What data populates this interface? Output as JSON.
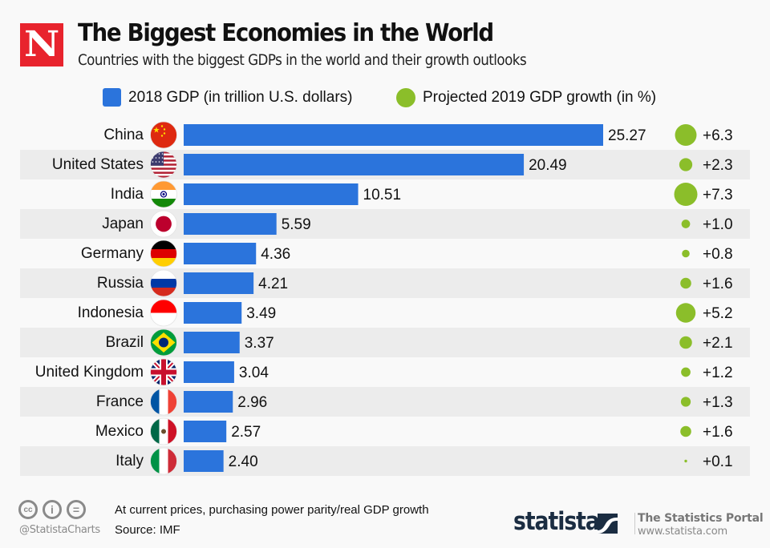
{
  "brand": {
    "logo_letter": "N",
    "logo_color": "#e8232d"
  },
  "header": {
    "title": "The Biggest Economies in the World",
    "subtitle": "Countries with the biggest GDPs in the world and their growth outlooks"
  },
  "legend": {
    "gdp_label": "2018 GDP (in trillion U.S. dollars)",
    "growth_label": "Projected 2019 GDP growth (in %)"
  },
  "chart_data": {
    "type": "bar",
    "title": "The Biggest Economies in the World",
    "subtitle": "Countries with the biggest GDPs in the world and their growth outlooks",
    "xlabel": "",
    "ylabel": "",
    "orientation": "horizontal",
    "grid": false,
    "legend_position": "top",
    "categories": [
      "China",
      "United States",
      "India",
      "Japan",
      "Germany",
      "Russia",
      "Indonesia",
      "Brazil",
      "United Kingdom",
      "France",
      "Mexico",
      "Italy"
    ],
    "flags": [
      "china-flag",
      "usa-flag",
      "india-flag",
      "japan-flag",
      "germany-flag",
      "russia-flag",
      "indonesia-flag",
      "brazil-flag",
      "uk-flag",
      "france-flag",
      "mexico-flag",
      "italy-flag"
    ],
    "series": [
      {
        "name": "2018 GDP (in trillion U.S. dollars)",
        "type": "bar",
        "color": "#2b74dc",
        "values": [
          25.27,
          20.49,
          10.51,
          5.59,
          4.36,
          4.21,
          3.49,
          3.37,
          3.04,
          2.96,
          2.57,
          2.4
        ],
        "labels": [
          "25.27",
          "20.49",
          "10.51",
          "5.59",
          "4.36",
          "4.21",
          "3.49",
          "3.37",
          "3.04",
          "2.96",
          "2.57",
          "2.40"
        ]
      },
      {
        "name": "Projected 2019 GDP growth (in %)",
        "type": "bubble",
        "color": "#8bbe2a",
        "values": [
          6.3,
          2.3,
          7.3,
          1.0,
          0.8,
          1.6,
          5.2,
          2.1,
          1.2,
          1.3,
          1.6,
          0.1
        ],
        "labels": [
          "+6.3",
          "+2.3",
          "+7.3",
          "+1.0",
          "+0.8",
          "+1.6",
          "+5.2",
          "+2.1",
          "+1.2",
          "+1.3",
          "+1.6",
          "+0.1"
        ]
      }
    ],
    "xlim": [
      0,
      26
    ]
  },
  "footer": {
    "license_icons": [
      "cc-icon",
      "attribution-icon",
      "no-derivatives-icon"
    ],
    "license_glyphs": [
      "cc",
      "i",
      "="
    ],
    "handle": "@StatistaCharts",
    "note": "At current prices, purchasing power parity/real GDP growth",
    "source": "Source: IMF",
    "statista_word": "statista",
    "portal_title": "The Statistics Portal",
    "portal_url": "www.statista.com"
  }
}
